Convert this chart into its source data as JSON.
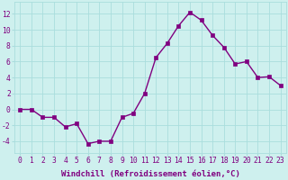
{
  "x": [
    0,
    1,
    2,
    3,
    4,
    5,
    6,
    7,
    8,
    9,
    10,
    11,
    12,
    13,
    14,
    15,
    16,
    17,
    18,
    19,
    20,
    21,
    22,
    23
  ],
  "y": [
    0,
    0,
    -1,
    -1,
    -2.2,
    -1.8,
    -4.3,
    -4,
    -4,
    -1,
    -0.5,
    2,
    6.5,
    8.3,
    10.5,
    12.2,
    11.2,
    9.3,
    7.8,
    5.7,
    6.0,
    4.0,
    4.1,
    3.0
  ],
  "line_color": "#800080",
  "marker": "s",
  "marker_size": 2.5,
  "bg_color": "#cef0ee",
  "grid_color": "#aadddd",
  "xlabel": "Windchill (Refroidissement éolien,°C)",
  "xlabel_fontsize": 6.5,
  "ylim": [
    -5.5,
    13.5
  ],
  "xlim": [
    -0.5,
    23.5
  ],
  "yticks": [
    -4,
    -2,
    0,
    2,
    4,
    6,
    8,
    10,
    12
  ],
  "xticks": [
    0,
    1,
    2,
    3,
    4,
    5,
    6,
    7,
    8,
    9,
    10,
    11,
    12,
    13,
    14,
    15,
    16,
    17,
    18,
    19,
    20,
    21,
    22,
    23
  ],
  "tick_fontsize": 5.8,
  "line_width": 1.0
}
